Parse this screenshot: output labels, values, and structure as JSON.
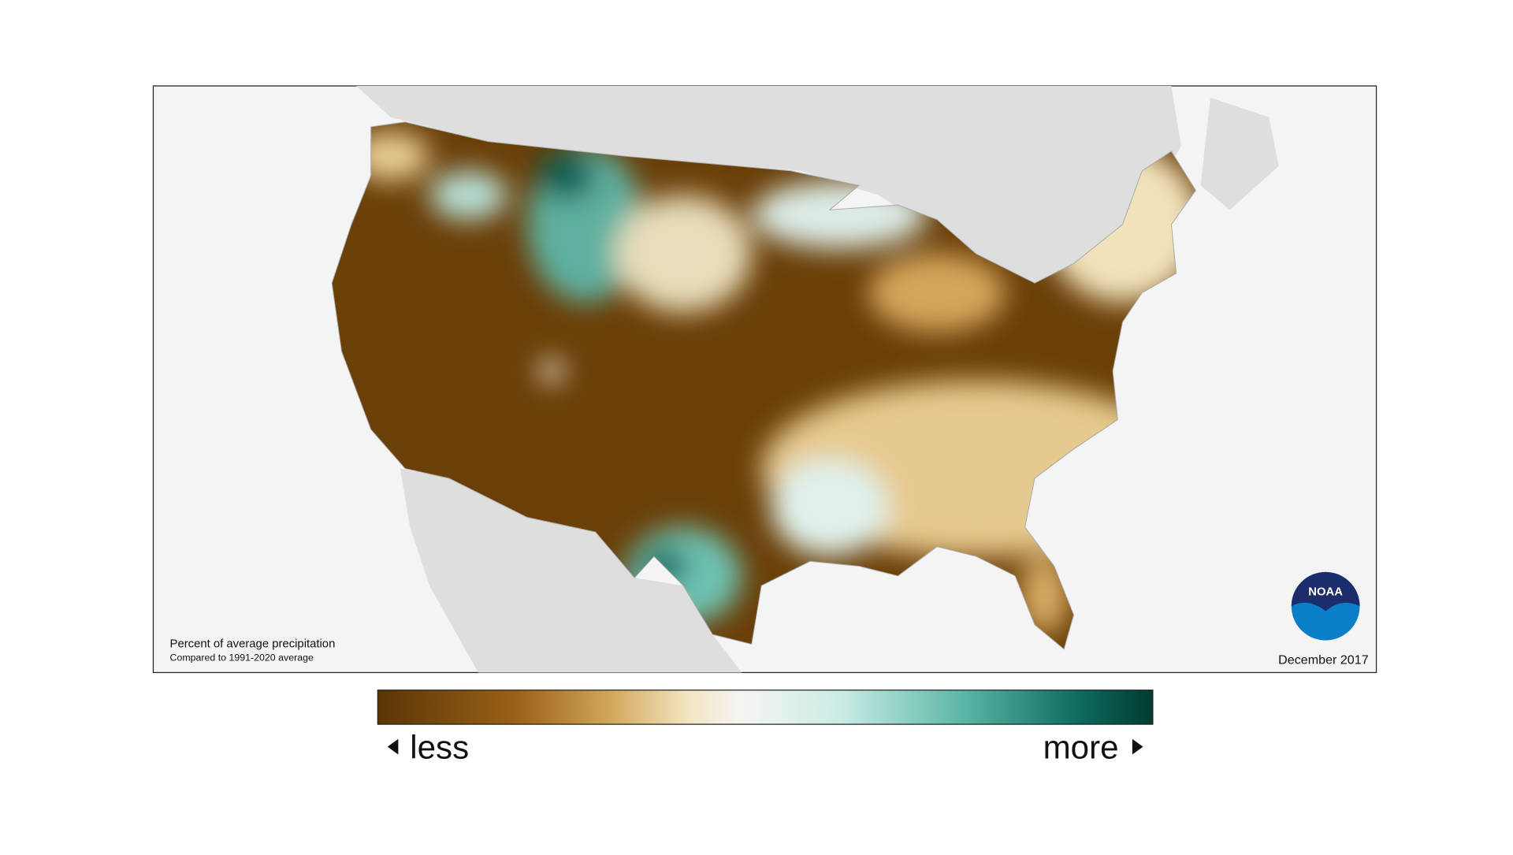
{
  "map": {
    "caption": {
      "title": "Percent of average precipitation",
      "subtitle": "Compared to 1991-2020 average"
    },
    "date": "December 2017"
  },
  "logo": {
    "label": "NOAA"
  },
  "legend": {
    "low_label": "less",
    "high_label": "more"
  }
}
